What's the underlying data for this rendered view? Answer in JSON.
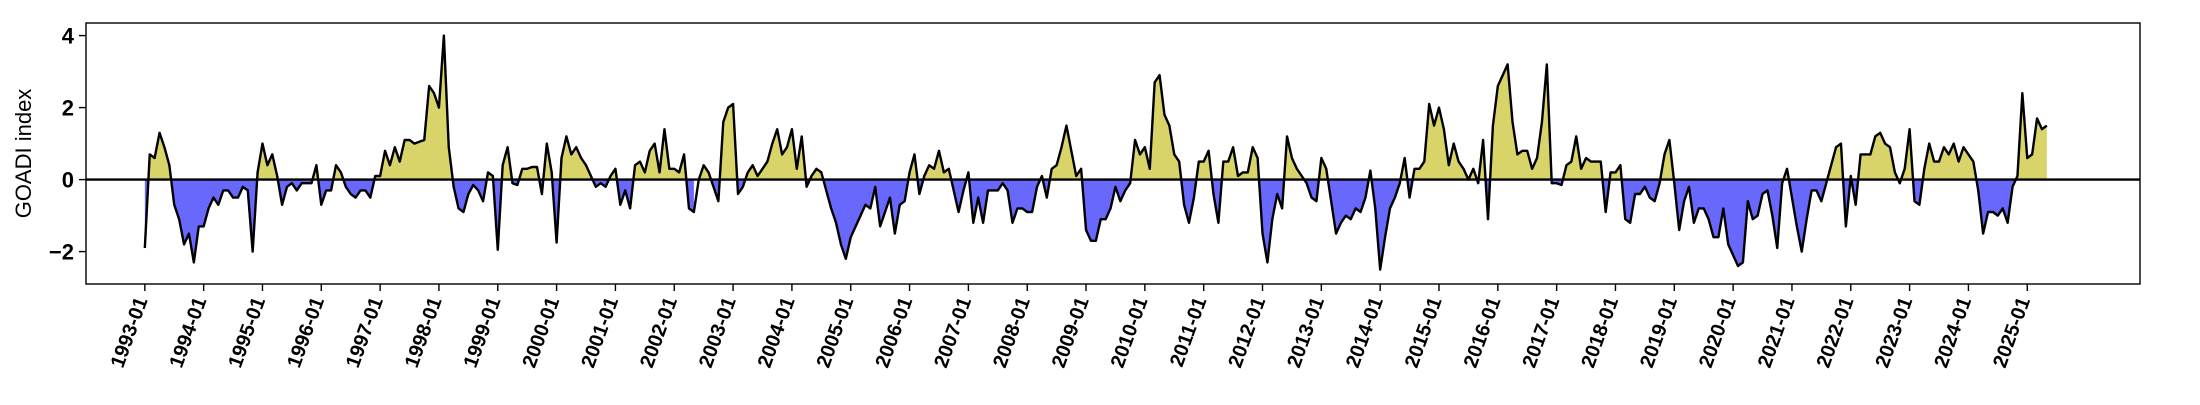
{
  "chart_data": {
    "type": "area",
    "title": "",
    "xlabel": "",
    "ylabel": "GOADI index",
    "ylim": [
      -2.9,
      4.35
    ],
    "xlim": [
      "1992-01",
      "2026-12"
    ],
    "grid": false,
    "legend": "none",
    "zero_line": true,
    "colors": {
      "positive_fill": "#d8d46a",
      "negative_fill": "#6868fc",
      "line": "#000000"
    },
    "yticks": [
      -2,
      0,
      2,
      4
    ],
    "xtick_labels": [
      "1993-01",
      "1994-01",
      "1995-01",
      "1996-01",
      "1997-01",
      "1998-01",
      "1999-01",
      "2000-01",
      "2001-01",
      "2002-01",
      "2003-01",
      "2004-01",
      "2005-01",
      "2006-01",
      "2007-01",
      "2008-01",
      "2009-01",
      "2010-01",
      "2011-01",
      "2012-01",
      "2013-01",
      "2014-01",
      "2015-01",
      "2016-01",
      "2017-01",
      "2018-01",
      "2019-01",
      "2020-01",
      "2021-01",
      "2022-01",
      "2023-01",
      "2024-01",
      "2025-01"
    ],
    "series": [
      {
        "start": "1993-01",
        "frequency": "monthly",
        "values": [
          -1.9,
          0.7,
          0.6,
          1.3,
          0.9,
          0.4,
          -0.7,
          -1.1,
          -1.8,
          -1.5,
          -2.3,
          -1.3,
          -1.3,
          -0.8,
          -0.5,
          -0.7,
          -0.3,
          -0.3,
          -0.5,
          -0.5,
          -0.2,
          -0.3,
          -2.0,
          0.2,
          1.0,
          0.4,
          0.7,
          0.1,
          -0.7,
          -0.2,
          -0.1,
          -0.3,
          -0.1,
          -0.1,
          -0.1,
          0.4,
          -0.7,
          -0.3,
          -0.3,
          0.4,
          0.2,
          -0.2,
          -0.4,
          -0.5,
          -0.3,
          -0.3,
          -0.5,
          0.1,
          0.1,
          0.8,
          0.4,
          0.9,
          0.5,
          1.1,
          1.1,
          1.0,
          1.05,
          1.1,
          2.6,
          2.4,
          2.0,
          4.0,
          0.9,
          -0.2,
          -0.8,
          -0.9,
          -0.4,
          -0.15,
          -0.3,
          -0.6,
          0.2,
          0.1,
          -1.95,
          0.4,
          0.9,
          -0.1,
          -0.15,
          0.3,
          0.3,
          0.35,
          0.35,
          -0.4,
          1.0,
          0.2,
          -1.75,
          0.6,
          1.2,
          0.7,
          0.9,
          0.6,
          0.4,
          0.1,
          -0.2,
          -0.1,
          -0.2,
          0.1,
          0.3,
          -0.7,
          -0.3,
          -0.8,
          0.4,
          0.5,
          0.2,
          0.8,
          1.0,
          0.2,
          1.4,
          0.3,
          0.3,
          0.2,
          0.7,
          -0.8,
          -0.9,
          0.0,
          0.4,
          0.2,
          -0.2,
          -0.6,
          1.6,
          2.0,
          2.1,
          -0.4,
          -0.2,
          0.2,
          0.4,
          0.1,
          0.3,
          0.5,
          1.0,
          1.4,
          0.7,
          0.9,
          1.4,
          0.3,
          1.2,
          -0.2,
          0.1,
          0.3,
          0.2,
          -0.3,
          -0.8,
          -1.2,
          -1.8,
          -2.2,
          -1.6,
          -1.3,
          -1.0,
          -0.7,
          -0.8,
          -0.2,
          -1.3,
          -0.9,
          -0.5,
          -1.5,
          -0.7,
          -0.6,
          0.2,
          0.7,
          -0.4,
          0.1,
          0.4,
          0.3,
          0.8,
          0.2,
          0.3,
          -0.3,
          -0.9,
          -0.3,
          0.2,
          -1.2,
          -0.5,
          -1.2,
          -0.3,
          -0.3,
          -0.3,
          -0.1,
          -0.3,
          -1.2,
          -0.8,
          -0.8,
          -0.9,
          -0.9,
          -0.2,
          0.1,
          -0.5,
          0.3,
          0.4,
          0.9,
          1.5,
          0.8,
          0.1,
          0.3,
          -1.4,
          -1.7,
          -1.7,
          -1.1,
          -1.1,
          -0.8,
          -0.2,
          -0.6,
          -0.3,
          -0.1,
          1.1,
          0.7,
          0.9,
          0.3,
          2.7,
          2.9,
          1.8,
          1.5,
          0.7,
          0.5,
          -0.7,
          -1.2,
          -0.5,
          0.5,
          0.5,
          0.8,
          -0.4,
          -1.2,
          0.5,
          0.5,
          0.9,
          0.1,
          0.2,
          0.2,
          0.9,
          0.6,
          -1.5,
          -2.3,
          -1.1,
          -0.4,
          -0.8,
          1.2,
          0.6,
          0.3,
          0.1,
          -0.1,
          -0.5,
          -0.6,
          0.6,
          0.3,
          -0.6,
          -1.5,
          -1.2,
          -1.0,
          -1.1,
          -0.8,
          -0.9,
          -0.5,
          0.25,
          -0.8,
          -2.5,
          -1.6,
          -0.8,
          -0.5,
          -0.1,
          0.6,
          -0.5,
          0.3,
          0.3,
          0.5,
          2.1,
          1.5,
          2.0,
          1.4,
          0.4,
          1.0,
          0.5,
          0.3,
          0.0,
          0.3,
          -0.1,
          1.1,
          -1.1,
          1.5,
          2.6,
          2.9,
          3.2,
          1.6,
          0.7,
          0.8,
          0.8,
          0.3,
          0.6,
          1.6,
          3.2,
          -0.1,
          -0.1,
          -0.15,
          0.4,
          0.5,
          1.2,
          0.3,
          0.6,
          0.5,
          0.5,
          0.5,
          -0.9,
          0.2,
          0.2,
          0.4,
          -1.1,
          -1.2,
          -0.4,
          -0.4,
          -0.2,
          -0.5,
          -0.6,
          -0.1,
          0.7,
          1.1,
          -0.1,
          -1.4,
          -0.6,
          -0.2,
          -1.2,
          -0.8,
          -0.8,
          -1.1,
          -1.6,
          -1.6,
          -0.8,
          -1.8,
          -2.1,
          -2.4,
          -2.3,
          -0.6,
          -1.1,
          -1.0,
          -0.4,
          -0.3,
          -1.0,
          -1.9,
          -0.1,
          0.3,
          -0.5,
          -1.3,
          -2.0,
          -1.1,
          -0.3,
          -0.3,
          -0.6,
          -0.1,
          0.4,
          0.9,
          1.0,
          -1.3,
          0.1,
          -0.7,
          0.7,
          0.7,
          0.7,
          1.2,
          1.3,
          1.0,
          0.9,
          0.2,
          -0.1,
          0.3,
          1.4,
          -0.6,
          -0.7,
          0.3,
          1.0,
          0.5,
          0.5,
          0.9,
          0.7,
          1.0,
          0.5,
          0.9,
          0.7,
          0.5,
          -0.3,
          -1.5,
          -0.9,
          -0.9,
          -1.0,
          -0.8,
          -1.2,
          -0.2,
          0.1,
          2.4,
          0.6,
          0.7,
          1.7,
          1.4,
          1.5
        ]
      }
    ]
  }
}
